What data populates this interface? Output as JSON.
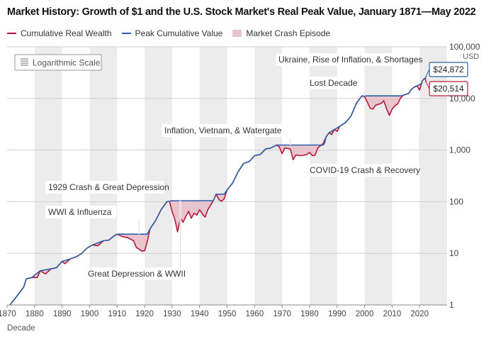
{
  "header": {
    "title": "Market History: Growth of $1 and the U.S. Stock Market's Real Peak Value, January 1871—May 2022"
  },
  "legend": {
    "items": [
      {
        "label": "Cumulative Real Wealth",
        "type": "line",
        "color": "#b5183a"
      },
      {
        "label": "Peak Cumulative Value",
        "type": "line",
        "color": "#2b5fa8"
      },
      {
        "label": "Market Crash Episode",
        "type": "box",
        "color": "#e8c4cc"
      }
    ]
  },
  "scale_badge": {
    "label": "Logarithmic Scale",
    "icon": "lines-icon"
  },
  "colors": {
    "wealth": "#b5183a",
    "peak": "#2b5fa8",
    "crash_fill": "#e8c4cc",
    "decade_band": "#ececec",
    "grid": "#cfcfcf"
  },
  "chart_data": {
    "type": "line",
    "title": "Market History: Growth of $1 and the U.S. Stock Market's Real Peak Value, January 1871—May 2022",
    "xlabel": "Decade",
    "ylabel": "USD",
    "x_scale": "linear",
    "y_scale": "log",
    "xlim": [
      1870,
      2030
    ],
    "ylim": [
      1,
      100000
    ],
    "x_ticks": [
      1870,
      1880,
      1890,
      1900,
      1910,
      1920,
      1930,
      1940,
      1950,
      1960,
      1970,
      1980,
      1990,
      2000,
      2010,
      2020
    ],
    "x_tick_labels": [
      "1870",
      "1880",
      "1890",
      "1900",
      "1910",
      "1920",
      "1930",
      "1940",
      "1950",
      "1960",
      "1970",
      "1980",
      "1990",
      "2000",
      "2010",
      "2020"
    ],
    "y_ticks": [
      1,
      10,
      100,
      1000,
      10000,
      100000
    ],
    "y_tick_labels": [
      "1",
      "10",
      "100",
      "1,000",
      "10,000",
      "100,000"
    ],
    "y_unit_label": "USD",
    "grid": true,
    "legend_position": "top-left",
    "series": [
      {
        "name": "Cumulative Real Wealth",
        "color": "#b5183a",
        "points": [
          [
            1871,
            1.0
          ],
          [
            1873,
            1.35
          ],
          [
            1876,
            2.2
          ],
          [
            1877,
            3.2
          ],
          [
            1879,
            3.4
          ],
          [
            1881,
            3.4
          ],
          [
            1882,
            4.6
          ],
          [
            1884,
            4.0
          ],
          [
            1886,
            5.0
          ],
          [
            1888,
            5.3
          ],
          [
            1890,
            7.0
          ],
          [
            1891,
            6.3
          ],
          [
            1893,
            7.8
          ],
          [
            1895,
            8.5
          ],
          [
            1897,
            9.8
          ],
          [
            1899,
            12.5
          ],
          [
            1901,
            14.5
          ],
          [
            1903,
            14.0
          ],
          [
            1905,
            17.5
          ],
          [
            1907,
            18.0
          ],
          [
            1909,
            22.0
          ],
          [
            1910,
            23.5
          ],
          [
            1912,
            21.0
          ],
          [
            1914,
            20.0
          ],
          [
            1916,
            17.5
          ],
          [
            1917,
            13.0
          ],
          [
            1918,
            12.0
          ],
          [
            1919,
            11.0
          ],
          [
            1920,
            11.2
          ],
          [
            1921,
            17.0
          ],
          [
            1922,
            30.0
          ],
          [
            1924,
            43.0
          ],
          [
            1926,
            70.0
          ],
          [
            1928,
            98.0
          ],
          [
            1929,
            104.0
          ],
          [
            1930,
            65.0
          ],
          [
            1931,
            45.0
          ],
          [
            1932,
            26.0
          ],
          [
            1933,
            48.0
          ],
          [
            1934,
            40.0
          ],
          [
            1935,
            52.0
          ],
          [
            1936,
            65.0
          ],
          [
            1937,
            48.0
          ],
          [
            1938,
            60.0
          ],
          [
            1939,
            55.0
          ],
          [
            1940,
            70.0
          ],
          [
            1941,
            58.0
          ],
          [
            1942,
            50.0
          ],
          [
            1943,
            70.0
          ],
          [
            1945,
            105.0
          ],
          [
            1946,
            140.0
          ],
          [
            1947,
            110.0
          ],
          [
            1948,
            102.0
          ],
          [
            1949,
            115.0
          ],
          [
            1950,
            170.0
          ],
          [
            1952,
            230.0
          ],
          [
            1954,
            380.0
          ],
          [
            1956,
            550.0
          ],
          [
            1958,
            600.0
          ],
          [
            1960,
            780.0
          ],
          [
            1962,
            820.0
          ],
          [
            1964,
            1050.0
          ],
          [
            1966,
            1100.0
          ],
          [
            1968,
            1250.0
          ],
          [
            1969,
            1150.0
          ],
          [
            1970,
            850.0
          ],
          [
            1971,
            1100.0
          ],
          [
            1973,
            1050.0
          ],
          [
            1974,
            650.0
          ],
          [
            1975,
            800.0
          ],
          [
            1977,
            780.0
          ],
          [
            1979,
            820.0
          ],
          [
            1980,
            900.0
          ],
          [
            1981,
            780.0
          ],
          [
            1982,
            800.0
          ],
          [
            1983,
            1100.0
          ],
          [
            1985,
            1350.0
          ],
          [
            1986,
            1800.0
          ],
          [
            1987,
            2150.0
          ],
          [
            1988,
            2000.0
          ],
          [
            1989,
            2500.0
          ],
          [
            1990,
            2300.0
          ],
          [
            1991,
            2900.0
          ],
          [
            1993,
            3400.0
          ],
          [
            1995,
            4500.0
          ],
          [
            1997,
            8000.0
          ],
          [
            1998,
            9500.0
          ],
          [
            1999,
            11200.0
          ],
          [
            2000,
            10800.0
          ],
          [
            2001,
            8500.0
          ],
          [
            2002,
            6500.0
          ],
          [
            2003,
            6200.0
          ],
          [
            2004,
            7400.0
          ],
          [
            2006,
            8000.0
          ],
          [
            2007,
            9000.0
          ],
          [
            2008,
            6300.0
          ],
          [
            2009,
            4700.0
          ],
          [
            2010,
            6200.0
          ],
          [
            2011,
            7200.0
          ],
          [
            2012,
            7800.0
          ],
          [
            2013,
            10000.0
          ],
          [
            2014,
            11500.0
          ],
          [
            2015,
            12000.0
          ],
          [
            2016,
            12500.0
          ],
          [
            2017,
            15000.0
          ],
          [
            2018,
            16500.0
          ],
          [
            2019,
            17500.0
          ],
          [
            2020,
            14500.0
          ],
          [
            2020.7,
            19500.0
          ],
          [
            2021,
            22000.0
          ],
          [
            2021.9,
            24872.0
          ],
          [
            2022.4,
            20514.0
          ]
        ]
      },
      {
        "name": "Peak Cumulative Value",
        "color": "#2b5fa8",
        "points": [
          [
            1871,
            1.0
          ],
          [
            1873,
            1.35
          ],
          [
            1876,
            2.2
          ],
          [
            1877,
            3.2
          ],
          [
            1879,
            3.4
          ],
          [
            1882,
            4.6
          ],
          [
            1886,
            5.0
          ],
          [
            1888,
            5.3
          ],
          [
            1890,
            7.0
          ],
          [
            1893,
            7.8
          ],
          [
            1895,
            8.5
          ],
          [
            1897,
            9.8
          ],
          [
            1899,
            12.5
          ],
          [
            1901,
            14.5
          ],
          [
            1905,
            17.5
          ],
          [
            1907,
            18.0
          ],
          [
            1909,
            22.0
          ],
          [
            1910,
            23.5
          ],
          [
            1921,
            23.5
          ],
          [
            1922,
            30.0
          ],
          [
            1924,
            43.0
          ],
          [
            1926,
            70.0
          ],
          [
            1928,
            98.0
          ],
          [
            1929,
            104.0
          ],
          [
            1945,
            105.0
          ],
          [
            1946,
            140.0
          ],
          [
            1949,
            140.0
          ],
          [
            1950,
            170.0
          ],
          [
            1952,
            230.0
          ],
          [
            1954,
            380.0
          ],
          [
            1956,
            550.0
          ],
          [
            1958,
            600.0
          ],
          [
            1960,
            780.0
          ],
          [
            1962,
            820.0
          ],
          [
            1964,
            1050.0
          ],
          [
            1966,
            1100.0
          ],
          [
            1968,
            1250.0
          ],
          [
            1985,
            1250.0
          ],
          [
            1985.5,
            1400.0
          ],
          [
            1986,
            1800.0
          ],
          [
            1987,
            2150.0
          ],
          [
            1989,
            2500.0
          ],
          [
            1991,
            2900.0
          ],
          [
            1993,
            3400.0
          ],
          [
            1995,
            4500.0
          ],
          [
            1997,
            8000.0
          ],
          [
            1998,
            9500.0
          ],
          [
            1999,
            11200.0
          ],
          [
            2013,
            11200.0
          ],
          [
            2014,
            11500.0
          ],
          [
            2015,
            12000.0
          ],
          [
            2016,
            12500.0
          ],
          [
            2017,
            15000.0
          ],
          [
            2018,
            16500.0
          ],
          [
            2019,
            17500.0
          ],
          [
            2020.7,
            19500.0
          ],
          [
            2021,
            22000.0
          ],
          [
            2021.9,
            24872.0
          ],
          [
            2022.4,
            24872.0
          ]
        ]
      }
    ],
    "annotations": [
      {
        "text": "WWI & Influenza",
        "x": 1918
      },
      {
        "text": "1929 Crash & Great Depression",
        "x": 1929
      },
      {
        "text": "Great Depression & WWII",
        "x": 1933
      },
      {
        "text": "Inflation, Vietnam, & Watergate",
        "x": 1973
      },
      {
        "text": "Lost Decade",
        "x": 2000
      },
      {
        "text": "COVID-19 Crash & Recovery",
        "x": 2020
      },
      {
        "text": "Ukraine, Rise of Inflation, & Shortages",
        "x": 2022
      }
    ],
    "value_labels": [
      {
        "text": "$24,872",
        "series": "Peak Cumulative Value",
        "x": 2022,
        "y": 24872
      },
      {
        "text": "$20,514",
        "series": "Cumulative Real Wealth",
        "x": 2022.4,
        "y": 20514
      }
    ]
  }
}
